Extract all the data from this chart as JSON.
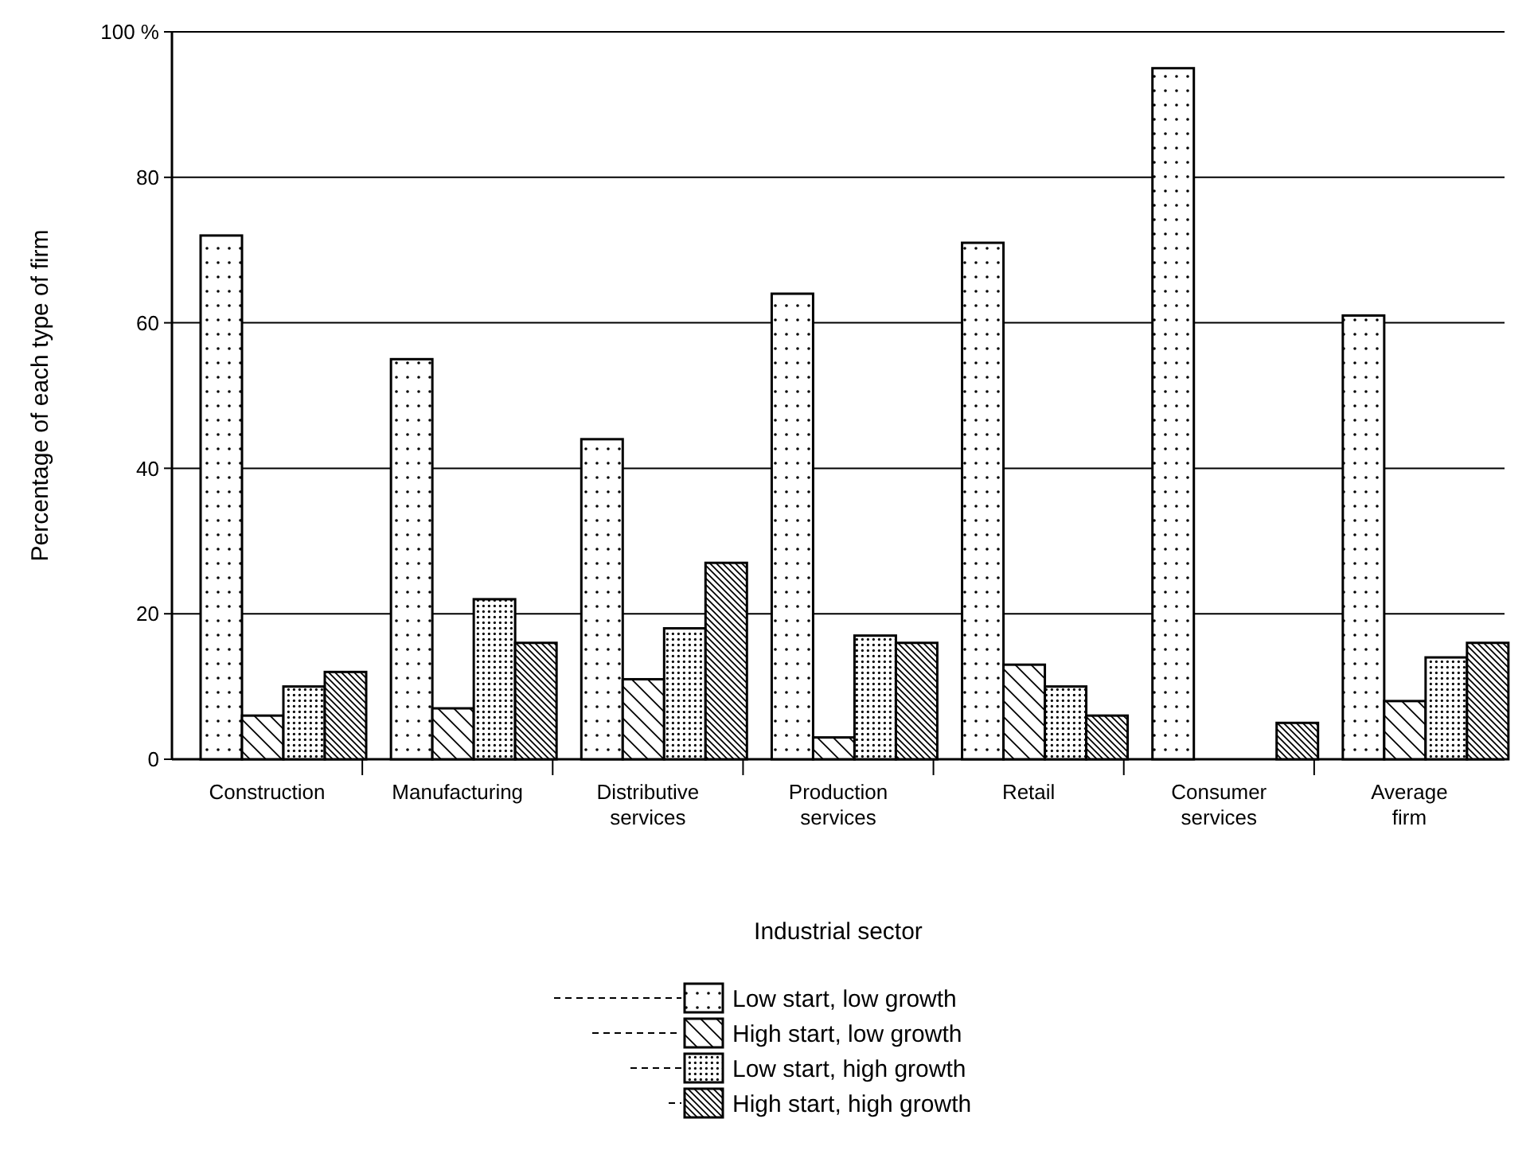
{
  "chart_data": {
    "type": "bar",
    "xlabel": "Industrial sector",
    "ylabel": "Percentage of each type of firm",
    "categories": [
      "Construction",
      "Manufacturing",
      "Distributive services",
      "Production services",
      "Retail",
      "Consumer services",
      "Average firm"
    ],
    "series": [
      {
        "name": "Low start, low growth",
        "color": "#000000",
        "values": [
          72,
          55,
          44,
          64,
          71,
          95,
          61
        ]
      },
      {
        "name": "High start, low growth",
        "color": "#000000",
        "values": [
          6,
          7,
          11,
          3,
          13,
          null,
          8
        ]
      },
      {
        "name": "Low start, high growth",
        "color": "#000000",
        "values": [
          10,
          22,
          18,
          17,
          10,
          null,
          14
        ]
      },
      {
        "name": "High start, high growth",
        "color": "#000000",
        "values": [
          12,
          16,
          27,
          16,
          6,
          5,
          16
        ]
      }
    ],
    "ylim": [
      0,
      100
    ],
    "yticks": [
      0,
      20,
      40,
      60,
      80,
      {
        "value": 100,
        "label": "100 %"
      }
    ],
    "grid": "y",
    "legend": "bottom"
  }
}
